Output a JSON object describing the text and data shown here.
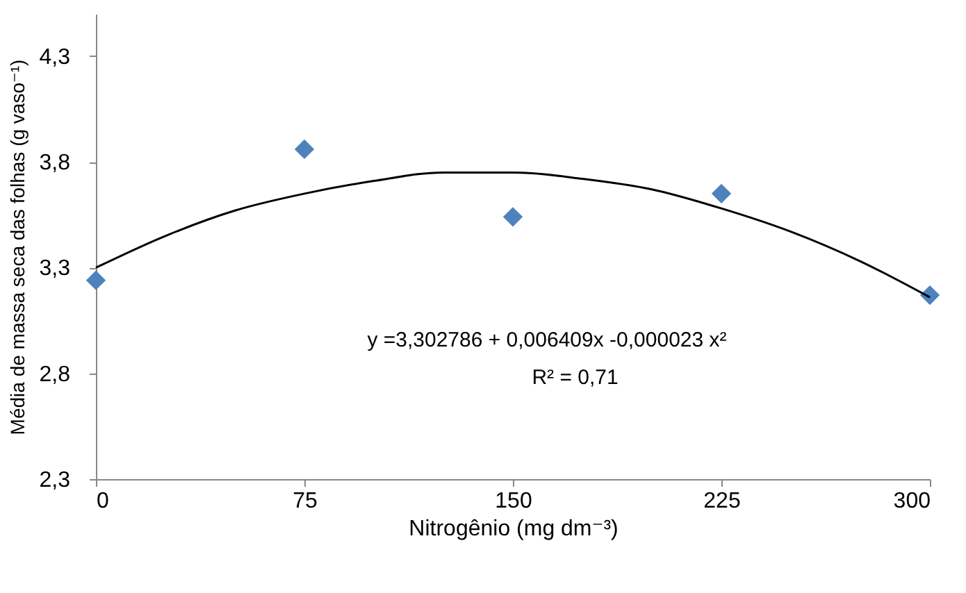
{
  "chart_data": {
    "type": "scatter",
    "xlabel": "Nitrogênio (mg dm⁻³)",
    "ylabel": "Média de massa seca das folhas (g vaso⁻¹)",
    "x": [
      0,
      75,
      150,
      225,
      300
    ],
    "series": [
      {
        "color": "#4f81bd",
        "marker": "diamond",
        "values": [
          3.24,
          3.86,
          3.54,
          3.65,
          3.17
        ]
      },
      {
        "type": "line",
        "color": "#000000",
        "marker": "none",
        "x": [
          0,
          25,
          50,
          75,
          100,
          125,
          139,
          150,
          175,
          200,
          225,
          250,
          275,
          300
        ],
        "values": [
          3.3,
          3.45,
          3.57,
          3.65,
          3.71,
          3.75,
          3.75,
          3.75,
          3.72,
          3.67,
          3.58,
          3.47,
          3.33,
          3.16
        ]
      }
    ],
    "xlim": [
      0,
      300
    ],
    "xticks": [
      0,
      75,
      150,
      225,
      300
    ],
    "ylim": [
      2.3,
      4.5
    ],
    "yticks": [
      {
        "value": 2.3,
        "label": "2,3"
      },
      {
        "value": 2.8,
        "label": "2,8"
      },
      {
        "value": 3.3,
        "label": "3,3"
      },
      {
        "value": 3.8,
        "label": "3,8"
      },
      {
        "value": 4.3,
        "label": "4,3"
      }
    ],
    "grid": false,
    "annotations": [
      "y =3,302786 + 0,006409x -0,000023 x²",
      "R² = 0,71"
    ]
  }
}
